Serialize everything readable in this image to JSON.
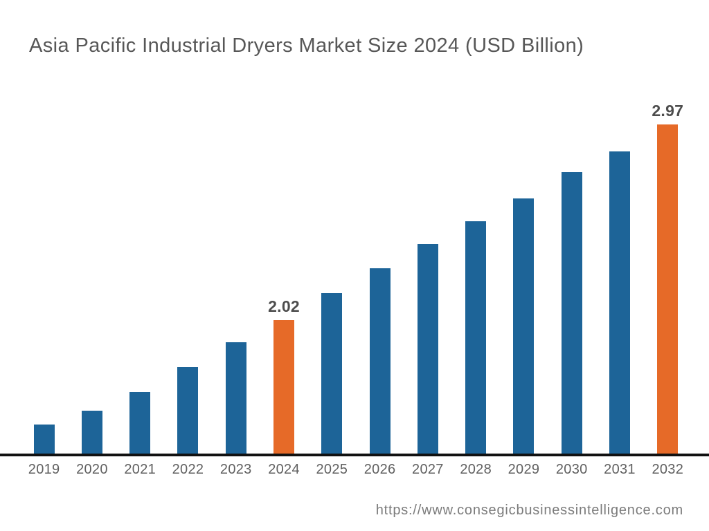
{
  "chart_data": {
    "type": "bar",
    "title": "Asia Pacific Industrial Dryers Market Size 2024 (USD Billion)",
    "xlabel": "",
    "ylabel": "USD Billion",
    "categories": [
      "2019",
      "2020",
      "2021",
      "2022",
      "2023",
      "2024",
      "2025",
      "2026",
      "2027",
      "2028",
      "2029",
      "2030",
      "2031",
      "2032"
    ],
    "values": [
      1.51,
      1.58,
      1.67,
      1.79,
      1.91,
      2.02,
      2.15,
      2.27,
      2.39,
      2.5,
      2.61,
      2.74,
      2.84,
      2.97
    ],
    "bars": [
      {
        "year": "2019",
        "value": 1.51,
        "highlight": false
      },
      {
        "year": "2020",
        "value": 1.58,
        "highlight": false
      },
      {
        "year": "2021",
        "value": 1.67,
        "highlight": false
      },
      {
        "year": "2022",
        "value": 1.79,
        "highlight": false
      },
      {
        "year": "2023",
        "value": 1.91,
        "highlight": false
      },
      {
        "year": "2024",
        "value": 2.02,
        "highlight": true,
        "label": "2.02"
      },
      {
        "year": "2025",
        "value": 2.15,
        "highlight": false
      },
      {
        "year": "2026",
        "value": 2.27,
        "highlight": false
      },
      {
        "year": "2027",
        "value": 2.39,
        "highlight": false
      },
      {
        "year": "2028",
        "value": 2.5,
        "highlight": false
      },
      {
        "year": "2029",
        "value": 2.61,
        "highlight": false
      },
      {
        "year": "2030",
        "value": 2.74,
        "highlight": false
      },
      {
        "year": "2031",
        "value": 2.84,
        "highlight": false
      },
      {
        "year": "2032",
        "value": 2.97,
        "highlight": true,
        "label": "2.97"
      }
    ],
    "labeled_points": [
      {
        "category": "2024",
        "label": "2.02"
      },
      {
        "category": "2032",
        "label": "2.97"
      }
    ],
    "legend": null,
    "grid": false,
    "y_axis_visible": false,
    "axis": {
      "baseline_value": 1.37,
      "top_value": 3.1
    },
    "colors": {
      "bar_default": "#1d6498",
      "bar_highlight": "#e66a28",
      "axis_line": "#111111",
      "title_text": "#575757",
      "tick_text": "#606060",
      "value_label_text": "#4d4d4d"
    }
  },
  "footer": {
    "source_url": "https://www.consegicbusinessintelligence.com",
    "url_color": "#7b7b7b"
  }
}
